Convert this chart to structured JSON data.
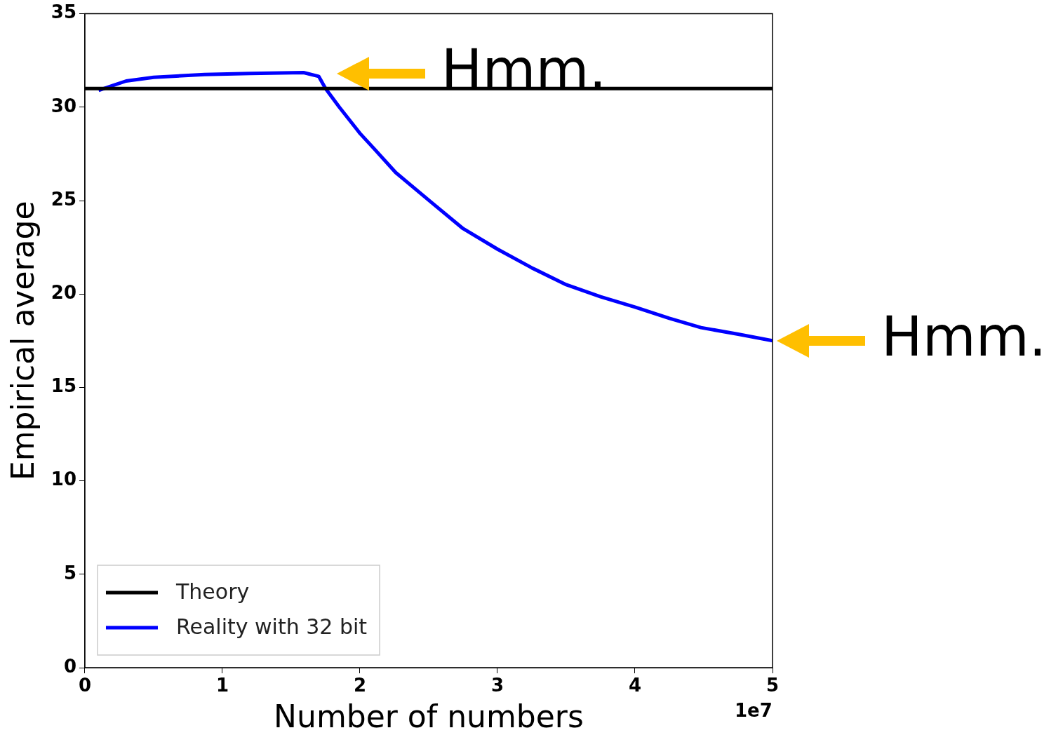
{
  "chart_data": {
    "type": "line",
    "xlabel": "Number of numbers",
    "ylabel": "Empirical average",
    "xlim": [
      0,
      5
    ],
    "xticks": [
      0,
      1,
      2,
      3,
      4,
      5
    ],
    "ylim": [
      0,
      35
    ],
    "yticks": [
      0,
      5,
      10,
      15,
      20,
      25,
      30,
      35
    ],
    "series": [
      {
        "name": "Theory",
        "color": "#000000",
        "x": [
          0,
          5
        ],
        "values": [
          31.0,
          31.0
        ]
      },
      {
        "name": "Reality with 32 bit",
        "color": "#0000ff",
        "x": [
          0.1,
          0.2,
          0.3,
          0.5,
          0.87,
          1.2,
          1.59,
          1.7,
          1.75,
          1.85,
          2.0,
          2.1,
          2.26,
          2.52,
          2.75,
          3.0,
          3.25,
          3.5,
          3.75,
          4.0,
          4.25,
          4.48,
          4.75,
          5.0
        ],
        "values": [
          30.9,
          31.15,
          31.4,
          31.6,
          31.75,
          31.8,
          31.85,
          31.65,
          31.0,
          30.0,
          28.6,
          27.8,
          26.5,
          24.9,
          23.5,
          22.4,
          21.4,
          20.5,
          19.85,
          19.3,
          18.7,
          18.2,
          17.85,
          17.5
        ]
      }
    ],
    "annotations": [
      "1e7",
      "Hmm.",
      {
        "text": "Hmm.",
        "x": 5,
        "y": 17.5
      }
    ],
    "legend": "bottom left",
    "grid": false,
    "marker": "none",
    "line_style": "solid"
  }
}
